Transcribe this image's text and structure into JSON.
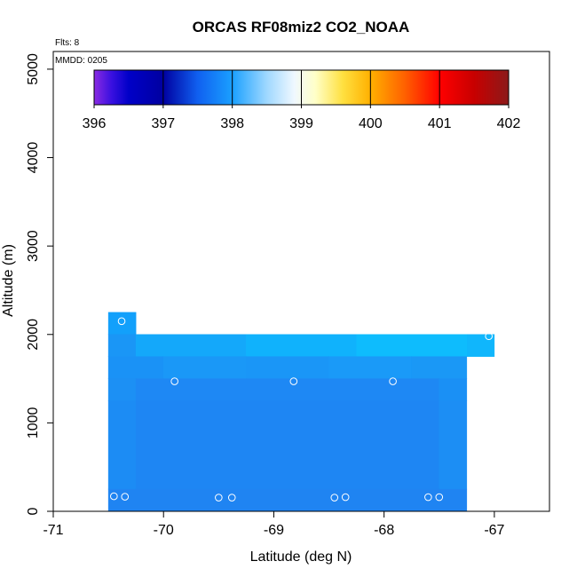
{
  "chart_data": {
    "type": "heatmap",
    "title": "ORCAS RF08miz2 CO2_NOAA",
    "annotations": {
      "flights": "Flts: 8",
      "date": "MMDD: 0205"
    },
    "xlabel": "Latitude (deg N)",
    "ylabel": "Altitude (m)",
    "xlim": [
      -71,
      -66.5
    ],
    "ylim": [
      0,
      5200
    ],
    "xticks": [
      -71,
      -70,
      -69,
      -68,
      -67
    ],
    "xtick_labels": [
      "-71",
      "-70",
      "-69",
      "-68",
      "-67"
    ],
    "yticks": [
      0,
      1000,
      2000,
      3000,
      4000,
      5000
    ],
    "ytick_labels": [
      "0",
      "1000",
      "2000",
      "3000",
      "4000",
      "5000"
    ],
    "colorbar": {
      "min": 396,
      "max": 402,
      "ticks": [
        396,
        397,
        398,
        399,
        400,
        401,
        402
      ],
      "tick_labels": [
        "396",
        "397",
        "398",
        "399",
        "400",
        "401",
        "402"
      ],
      "stops": [
        {
          "value": 396.0,
          "color": "#8a2be2"
        },
        {
          "value": 396.25,
          "color": "#3a10e0"
        },
        {
          "value": 396.5,
          "color": "#0000c8"
        },
        {
          "value": 397.0,
          "color": "#0000a0"
        },
        {
          "value": 397.5,
          "color": "#1060f0"
        },
        {
          "value": 398.0,
          "color": "#1aa0ff"
        },
        {
          "value": 398.5,
          "color": "#9fd8ff"
        },
        {
          "value": 398.9,
          "color": "#f0f8ff"
        },
        {
          "value": 399.2,
          "color": "#ffffc8"
        },
        {
          "value": 399.6,
          "color": "#ffe040"
        },
        {
          "value": 400.0,
          "color": "#ffb000"
        },
        {
          "value": 400.5,
          "color": "#ff6000"
        },
        {
          "value": 401.0,
          "color": "#ff0000"
        },
        {
          "value": 401.5,
          "color": "#c80000"
        },
        {
          "value": 402.0,
          "color": "#8b1a1a"
        }
      ]
    },
    "cell_size": {
      "lat": 0.25,
      "alt": 250
    },
    "cells": [
      {
        "lat0": -70.5,
        "lat1": -70.25,
        "alt0": 2000,
        "alt1": 2250,
        "color": "#12a0fb"
      },
      {
        "lat0": -67.25,
        "lat1": -67.0,
        "alt0": 1750,
        "alt1": 2000,
        "color": "#10b6fc"
      },
      {
        "lat0": -70.5,
        "lat1": -70.25,
        "alt0": 1750,
        "alt1": 2000,
        "color": "#1a96f6"
      },
      {
        "lat0": -70.25,
        "lat1": -69.25,
        "alt0": 1750,
        "alt1": 2000,
        "color": "#14a8fa"
      },
      {
        "lat0": -69.25,
        "lat1": -68.25,
        "alt0": 1750,
        "alt1": 2000,
        "color": "#10b2fc"
      },
      {
        "lat0": -68.25,
        "lat1": -67.25,
        "alt0": 1750,
        "alt1": 2000,
        "color": "#0ebcfd"
      },
      {
        "lat0": -70.5,
        "lat1": -70.0,
        "alt0": 1500,
        "alt1": 1750,
        "color": "#1a92f6"
      },
      {
        "lat0": -70.0,
        "lat1": -69.25,
        "alt0": 1500,
        "alt1": 1750,
        "color": "#1a98f7"
      },
      {
        "lat0": -69.25,
        "lat1": -68.5,
        "alt0": 1500,
        "alt1": 1750,
        "color": "#1a96f7"
      },
      {
        "lat0": -68.5,
        "lat1": -67.75,
        "alt0": 1500,
        "alt1": 1750,
        "color": "#1a9af8"
      },
      {
        "lat0": -67.75,
        "lat1": -67.25,
        "alt0": 1500,
        "alt1": 1750,
        "color": "#1a98f6"
      },
      {
        "lat0": -70.5,
        "lat1": -70.25,
        "alt0": 1250,
        "alt1": 1500,
        "color": "#1c90f4"
      },
      {
        "lat0": -70.25,
        "lat1": -67.5,
        "alt0": 1250,
        "alt1": 1500,
        "color": "#1e88f4"
      },
      {
        "lat0": -67.5,
        "lat1": -67.25,
        "alt0": 1250,
        "alt1": 1500,
        "color": "#1a90f5"
      },
      {
        "lat0": -70.5,
        "lat1": -70.25,
        "alt0": 250,
        "alt1": 1250,
        "color": "#1c8cf4"
      },
      {
        "lat0": -70.25,
        "lat1": -67.5,
        "alt0": 250,
        "alt1": 1250,
        "color": "#1e86f3"
      },
      {
        "lat0": -67.5,
        "lat1": -67.25,
        "alt0": 250,
        "alt1": 1250,
        "color": "#1c8ef4"
      },
      {
        "lat0": -70.5,
        "lat1": -67.25,
        "alt0": 0,
        "alt1": 250,
        "color": "#1f84f2"
      }
    ],
    "points": [
      {
        "lat": -70.38,
        "alt": 2150
      },
      {
        "lat": -67.05,
        "alt": 1980
      },
      {
        "lat": -69.9,
        "alt": 1470
      },
      {
        "lat": -68.82,
        "alt": 1470
      },
      {
        "lat": -67.92,
        "alt": 1470
      },
      {
        "lat": -70.45,
        "alt": 170
      },
      {
        "lat": -70.35,
        "alt": 165
      },
      {
        "lat": -69.5,
        "alt": 155
      },
      {
        "lat": -69.38,
        "alt": 155
      },
      {
        "lat": -68.45,
        "alt": 155
      },
      {
        "lat": -68.35,
        "alt": 160
      },
      {
        "lat": -67.6,
        "alt": 160
      },
      {
        "lat": -67.5,
        "alt": 160
      }
    ]
  }
}
